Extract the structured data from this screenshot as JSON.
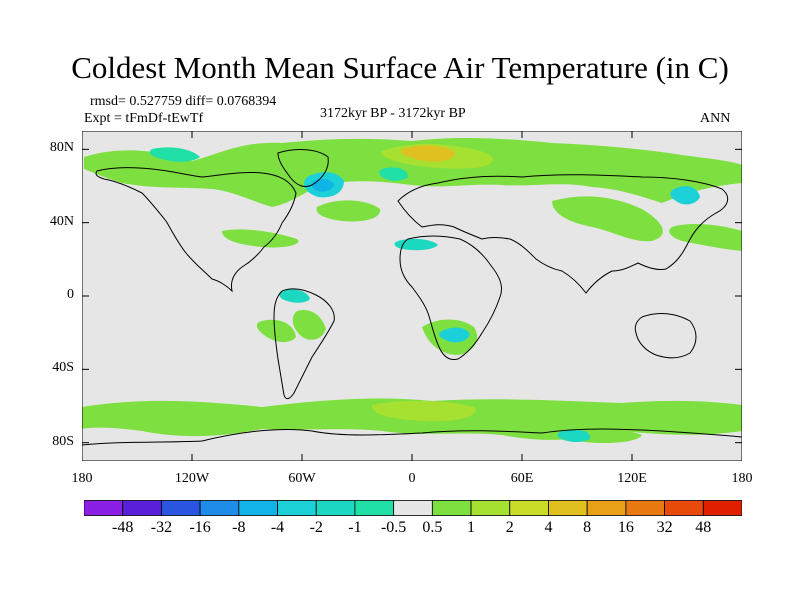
{
  "title": "Coldest Month Mean Surface Air Temperature (in C)",
  "stats": {
    "rmsd_text": "rmsd= 0.527759 diff= 0.0768394"
  },
  "experiment_text": "Expt = tFmDf-tEwTf",
  "period_text": "3172kyr BP - 3172kyr BP",
  "season_text": "ANN",
  "map": {
    "projection": "cylindrical-equidistant",
    "lon_range": [
      -180,
      180
    ],
    "lat_range": [
      -90,
      90
    ],
    "lon_ticks": [
      {
        "value": -180,
        "label": "180"
      },
      {
        "value": -120,
        "label": "120W"
      },
      {
        "value": -60,
        "label": "60W"
      },
      {
        "value": 0,
        "label": "0"
      },
      {
        "value": 60,
        "label": "60E"
      },
      {
        "value": 120,
        "label": "120E"
      },
      {
        "value": 180,
        "label": "180"
      }
    ],
    "lat_ticks": [
      {
        "value": 80,
        "label": "80N"
      },
      {
        "value": 40,
        "label": "40N"
      },
      {
        "value": 0,
        "label": "0"
      },
      {
        "value": -40,
        "label": "40S"
      },
      {
        "value": -80,
        "label": "80S"
      }
    ],
    "background_color": "#e6e6e6",
    "coastline_color": "#000000"
  },
  "colorbar": {
    "labels": [
      "-48",
      "-32",
      "-16",
      "-8",
      "-4",
      "-2",
      "-1",
      "-0.5",
      "0.5",
      "1",
      "2",
      "4",
      "8",
      "16",
      "32",
      "48"
    ],
    "colors": [
      "#8a1fe6",
      "#5a1fd9",
      "#2a55e0",
      "#1e8ce8",
      "#10b4e6",
      "#1cd0d8",
      "#1cd8c0",
      "#20e0a8",
      "#e6e6e6",
      "#7ee040",
      "#a6e030",
      "#c8dc28",
      "#e0c020",
      "#e8a018",
      "#e87810",
      "#e84a0a",
      "#e01e00"
    ]
  }
}
